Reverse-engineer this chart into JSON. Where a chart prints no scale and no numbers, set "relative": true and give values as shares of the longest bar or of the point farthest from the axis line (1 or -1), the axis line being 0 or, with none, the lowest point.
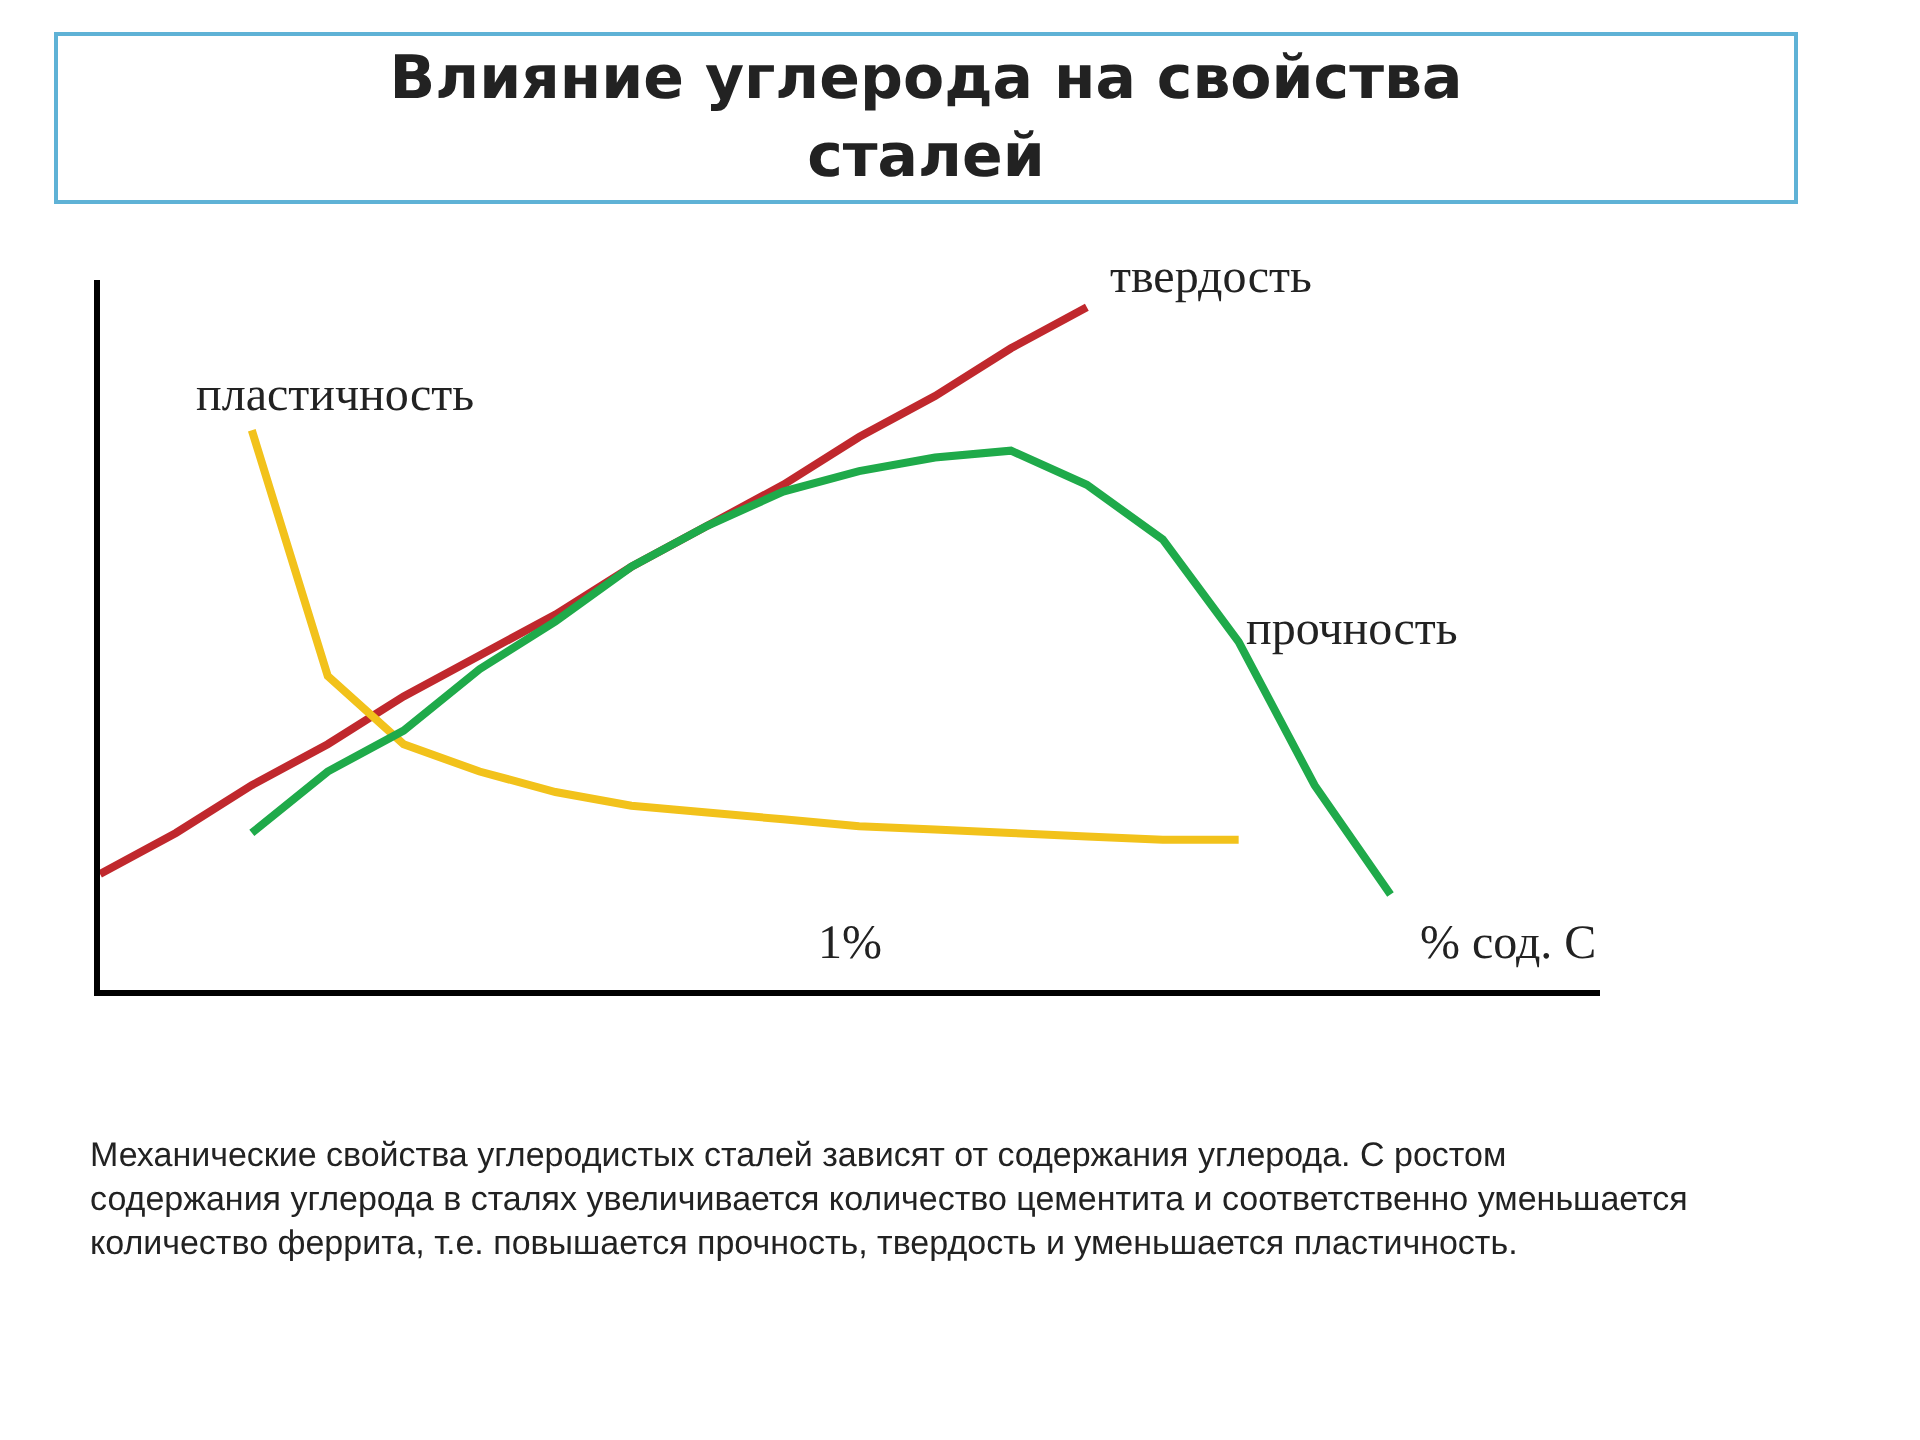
{
  "chart_data": {
    "type": "line",
    "relative": true,
    "title": "Влияние углерода на свойства сталей",
    "xlabel": "% сод. С",
    "legend": false,
    "marker": "none",
    "line_style": "solid",
    "categories": [
      null,
      null,
      null,
      null,
      null,
      null,
      null,
      null,
      null,
      null,
      null,
      null,
      null,
      null,
      null,
      null,
      null,
      null,
      null,
      null
    ],
    "series": [
      {
        "name": "твердость",
        "color": "#c0282d",
        "values": [
          0.17,
          0.23,
          0.3,
          0.36,
          0.43,
          0.49,
          0.55,
          0.62,
          0.68,
          0.74,
          0.81,
          0.87,
          0.94,
          1.0,
          null,
          null,
          null,
          null,
          null,
          null
        ]
      },
      {
        "name": "пластичность",
        "color": "#f2c21b",
        "values": [
          null,
          null,
          0.82,
          0.46,
          0.36,
          0.32,
          0.29,
          0.27,
          0.26,
          0.25,
          0.24,
          0.235,
          0.23,
          0.225,
          0.22,
          0.22,
          null,
          null,
          null,
          null
        ]
      },
      {
        "name": "прочность",
        "color": "#1faa4a",
        "values": [
          null,
          null,
          0.23,
          0.32,
          0.38,
          0.47,
          0.54,
          0.62,
          0.68,
          0.73,
          0.76,
          0.78,
          0.79,
          0.74,
          0.66,
          0.51,
          0.3,
          0.14,
          null,
          null
        ]
      }
    ],
    "annotations": [
      "1%",
      "Механические свойства углеродистых сталей зависят от содержания углерода. С ростом содержания углерода в сталях увеличивается количество цементита и соответственно уменьшается количество феррита, т.е. повышается прочность, твердость и уменьшается пластичность."
    ]
  }
}
